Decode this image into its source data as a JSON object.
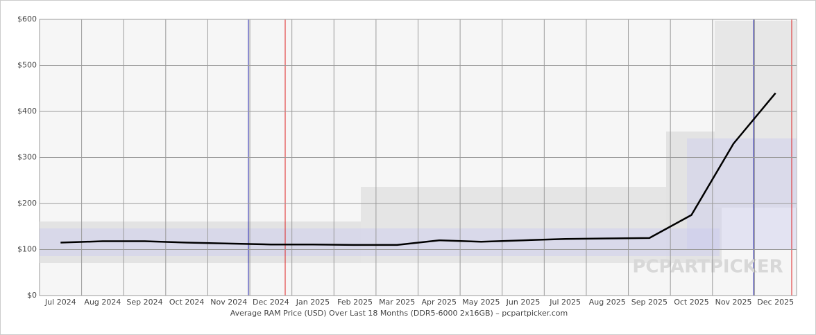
{
  "chart_data": {
    "type": "line",
    "x_label": "Average RAM Price (USD) Over Last 18 Months (DDR5-6000 2x16GB) – pcpartpicker.com",
    "watermark": "PCPARTPICKER",
    "categories": [
      "Jul 2024",
      "Aug 2024",
      "Sep 2024",
      "Oct 2024",
      "Nov 2024",
      "Dec 2024",
      "Jan 2025",
      "Feb 2025",
      "Mar 2025",
      "Apr 2025",
      "May 2025",
      "Jun 2025",
      "Jul 2025",
      "Aug 2025",
      "Sep 2025",
      "Oct 2025",
      "Nov 2025",
      "Dec 2025"
    ],
    "series": [
      {
        "name": "Average",
        "color": "#000000",
        "values": [
          115,
          118,
          118,
          115,
          113,
          111,
          111,
          110,
          110,
          120,
          117,
          120,
          123,
          124,
          125,
          175,
          330,
          440
        ]
      }
    ],
    "ylim": [
      0,
      600
    ],
    "yticks": [
      {
        "value": 0,
        "label": "$0"
      },
      {
        "value": 100,
        "label": "$100"
      },
      {
        "value": 200,
        "label": "$200"
      },
      {
        "value": 300,
        "label": "$300"
      },
      {
        "value": 400,
        "label": "$400"
      },
      {
        "value": 500,
        "label": "$500"
      },
      {
        "value": 600,
        "label": "$600"
      }
    ],
    "grid": true
  }
}
